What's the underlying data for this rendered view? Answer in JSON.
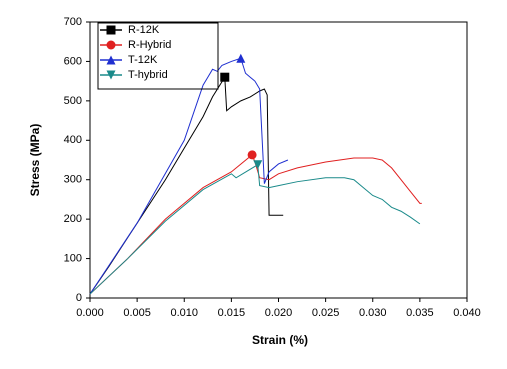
{
  "chart_data": {
    "type": "line",
    "x_label": "Strain (%)",
    "y_label": "Stress (MPa)",
    "xlim": [
      0,
      0.04
    ],
    "ylim": [
      0,
      700
    ],
    "xticks": [
      {
        "value": 0,
        "label": "0.000"
      },
      {
        "value": 0.005,
        "label": "0.005"
      },
      {
        "value": 0.01,
        "label": "0.010"
      },
      {
        "value": 0.015,
        "label": "0.015"
      },
      {
        "value": 0.02,
        "label": "0.020"
      },
      {
        "value": 0.025,
        "label": "0.025"
      },
      {
        "value": 0.03,
        "label": "0.030"
      },
      {
        "value": 0.035,
        "label": "0.035"
      },
      {
        "value": 0.04,
        "label": "0.040"
      }
    ],
    "yticks": [
      0,
      100,
      200,
      300,
      400,
      500,
      600,
      700
    ],
    "legend": "top-left",
    "series": [
      {
        "name": "R-12K",
        "color": "#000000",
        "marker": "square",
        "x": [
          0,
          0.002,
          0.005,
          0.008,
          0.01,
          0.012,
          0.013,
          0.0143,
          0.0145,
          0.015,
          0.016,
          0.017,
          0.018,
          0.0185,
          0.0188,
          0.019,
          0.0195,
          0.0205
        ],
        "values": [
          10,
          80,
          190,
          300,
          380,
          460,
          510,
          560,
          475,
          485,
          500,
          510,
          525,
          530,
          515,
          210,
          210,
          210
        ]
      },
      {
        "name": "R-Hybrid",
        "color": "#e02020",
        "marker": "circle",
        "x": [
          0,
          0.004,
          0.008,
          0.012,
          0.015,
          0.0172,
          0.0175,
          0.018,
          0.019,
          0.02,
          0.022,
          0.025,
          0.028,
          0.03,
          0.031,
          0.032,
          0.033,
          0.034,
          0.035,
          0.0352
        ],
        "values": [
          10,
          100,
          200,
          280,
          320,
          363,
          345,
          305,
          300,
          315,
          330,
          345,
          355,
          355,
          350,
          330,
          300,
          270,
          240,
          240
        ]
      },
      {
        "name": "T-12K",
        "color": "#1f2fd0",
        "marker": "triangle",
        "x": [
          0,
          0.005,
          0.01,
          0.011,
          0.012,
          0.0125,
          0.013,
          0.0135,
          0.014,
          0.015,
          0.016,
          0.0165,
          0.017,
          0.0175,
          0.018,
          0.0185,
          0.019,
          0.02,
          0.021
        ],
        "values": [
          10,
          190,
          400,
          470,
          540,
          560,
          580,
          575,
          590,
          600,
          608,
          570,
          560,
          550,
          530,
          290,
          320,
          340,
          350
        ]
      },
      {
        "name": "T-hybrid",
        "color": "#1a8a8a",
        "marker": "triangle-down",
        "x": [
          0,
          0.004,
          0.008,
          0.012,
          0.015,
          0.0155,
          0.0178,
          0.018,
          0.019,
          0.02,
          0.022,
          0.025,
          0.027,
          0.028,
          0.029,
          0.03,
          0.031,
          0.032,
          0.033,
          0.034,
          0.035
        ],
        "values": [
          10,
          100,
          195,
          275,
          315,
          305,
          338,
          285,
          280,
          285,
          295,
          305,
          305,
          300,
          280,
          260,
          250,
          230,
          220,
          205,
          188
        ]
      }
    ]
  }
}
